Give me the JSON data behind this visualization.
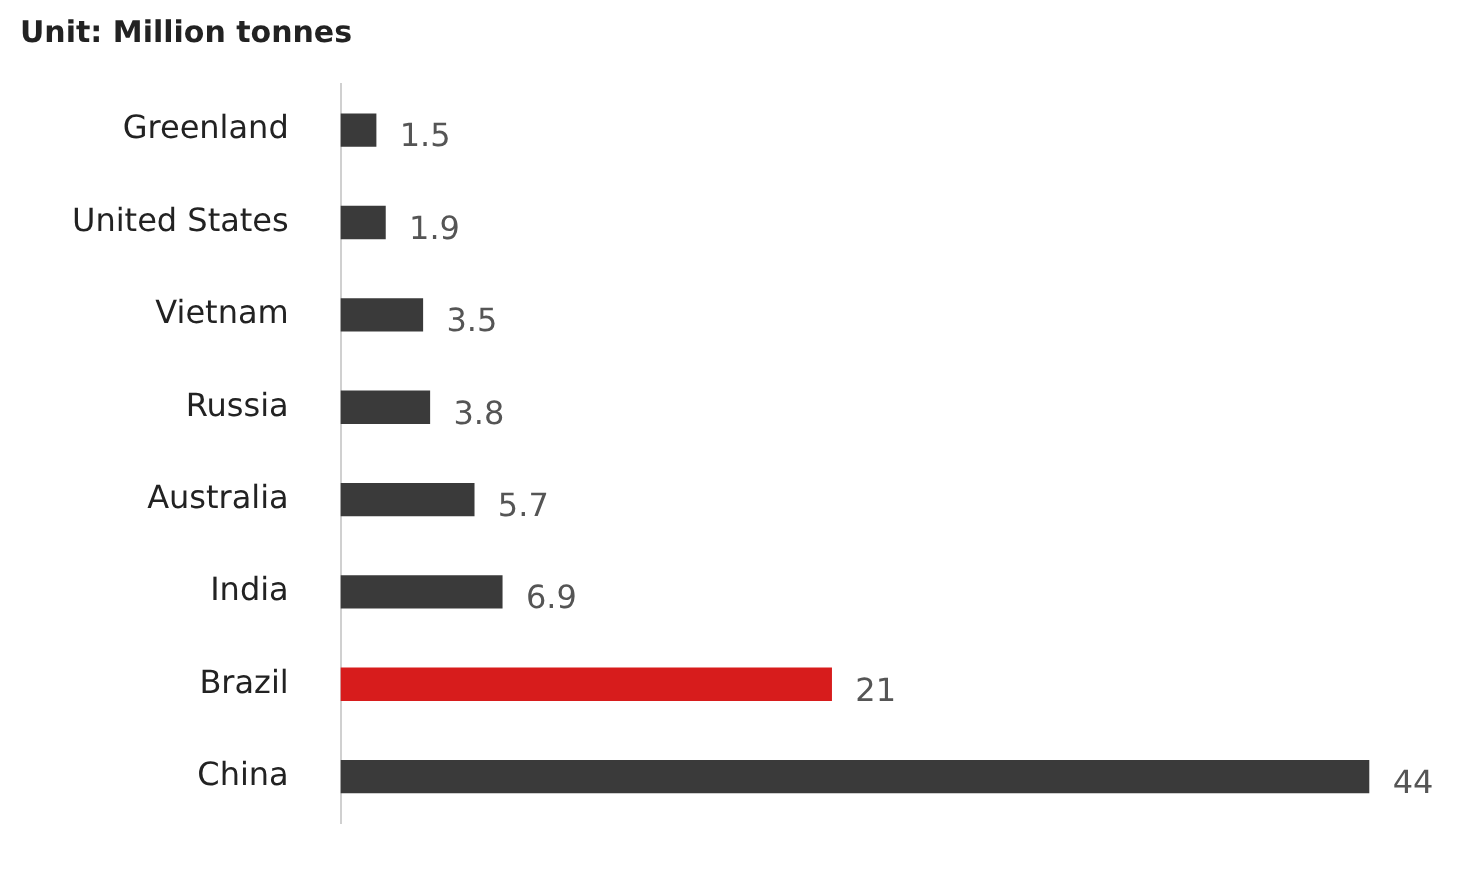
{
  "chart_data": {
    "type": "bar",
    "orientation": "horizontal",
    "title": "Unit: Million tonnes",
    "categories": [
      "Greenland",
      "United States",
      "Vietnam",
      "Russia",
      "Australia",
      "India",
      "Brazil",
      "China"
    ],
    "values": [
      1.5,
      1.9,
      3.5,
      3.8,
      5.7,
      6.9,
      21,
      44
    ],
    "colors": [
      "#3a3a3a",
      "#3a3a3a",
      "#3a3a3a",
      "#3a3a3a",
      "#3a3a3a",
      "#3a3a3a",
      "#d71c1c",
      "#3a3a3a"
    ],
    "data_labels": true,
    "legend": false
  }
}
